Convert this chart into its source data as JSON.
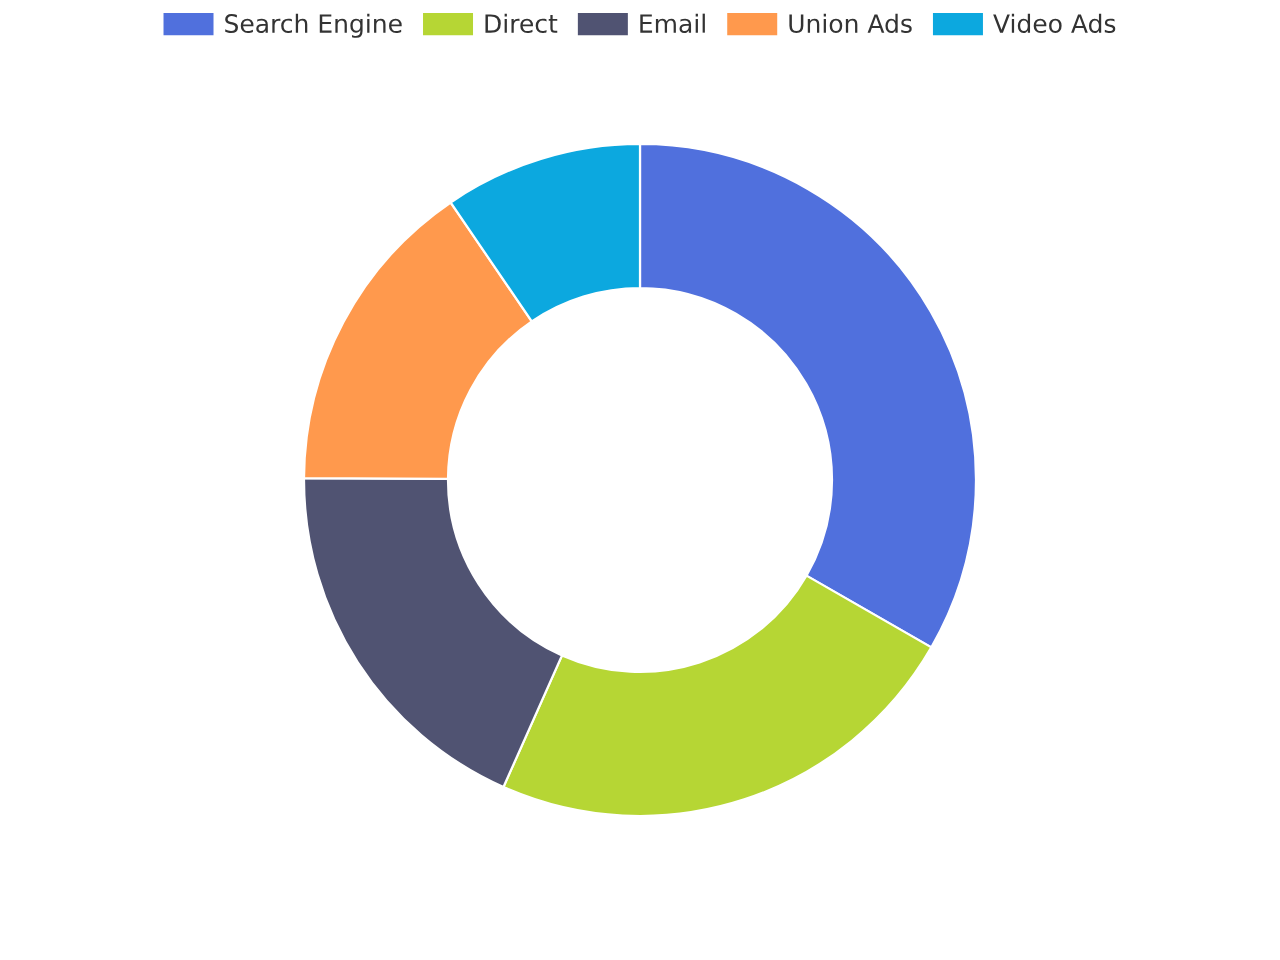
{
  "chart_data": {
    "type": "donut",
    "categories": [
      "Search Engine",
      "Direct",
      "Email",
      "Union Ads",
      "Video Ads"
    ],
    "values": [
      33.3,
      23.36,
      18.43,
      15.38,
      9.53
    ],
    "colors": [
      "#5070dd",
      "#b6d634",
      "#505372",
      "#ff994d",
      "#0ca8df"
    ],
    "legend": "top"
  }
}
